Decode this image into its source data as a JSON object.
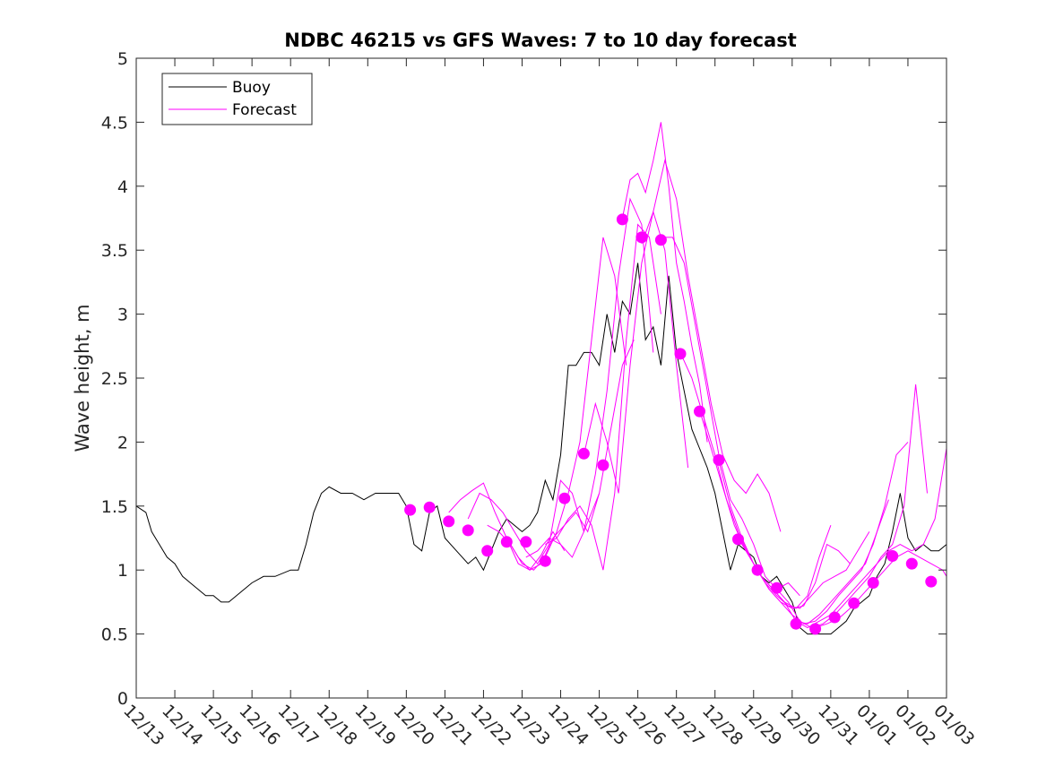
{
  "colors": {
    "buoy": "#000000",
    "forecast": "#ff00ff",
    "axes": "#262626",
    "background": "#ffffff"
  },
  "chart_data": {
    "type": "line",
    "title": "NDBC 46215 vs GFS Waves: 7 to 10 day forecast",
    "xlabel": "",
    "ylabel": "Wave height, m",
    "xlim": [
      0,
      21
    ],
    "ylim": [
      0,
      5
    ],
    "grid": false,
    "legend_position": "top-left",
    "x_unit": "days since 12/13",
    "xticks": [
      0,
      1,
      2,
      3,
      4,
      5,
      6,
      7,
      8,
      9,
      10,
      11,
      12,
      13,
      14,
      15,
      16,
      17,
      18,
      19,
      20,
      21
    ],
    "xtick_labels": [
      "12/13",
      "12/14",
      "12/15",
      "12/16",
      "12/17",
      "12/18",
      "12/19",
      "12/20",
      "12/21",
      "12/22",
      "12/23",
      "12/24",
      "12/25",
      "12/26",
      "12/27",
      "12/28",
      "12/29",
      "12/30",
      "12/31",
      "01/01",
      "01/02",
      "01/03"
    ],
    "yticks": [
      0,
      0.5,
      1,
      1.5,
      2,
      2.5,
      3,
      3.5,
      4,
      4.5,
      5
    ],
    "ytick_labels": [
      "0",
      "0.5",
      "1",
      "1.5",
      "2",
      "2.5",
      "3",
      "3.5",
      "4",
      "4.5",
      "5"
    ],
    "legend": [
      {
        "label": "Buoy",
        "series": "buoy"
      },
      {
        "label": "Forecast",
        "series": "forecast"
      }
    ],
    "buoy": {
      "name": "Buoy",
      "x": [
        0,
        0.25,
        0.4,
        0.6,
        0.8,
        1.0,
        1.2,
        1.4,
        1.6,
        1.8,
        2.0,
        2.2,
        2.4,
        2.6,
        2.8,
        3.0,
        3.3,
        3.6,
        4.0,
        4.2,
        4.4,
        4.6,
        4.8,
        5.0,
        5.3,
        5.6,
        5.9,
        6.2,
        6.5,
        6.8,
        7.0,
        7.2,
        7.4,
        7.6,
        7.8,
        8.0,
        8.3,
        8.6,
        8.8,
        9.0,
        9.2,
        9.4,
        9.6,
        9.8,
        10.0,
        10.2,
        10.4,
        10.6,
        10.8,
        11.0,
        11.2,
        11.4,
        11.6,
        11.8,
        12.0,
        12.2,
        12.4,
        12.6,
        12.8,
        13.0,
        13.2,
        13.4,
        13.6,
        13.8,
        14.0,
        14.2,
        14.4,
        14.6,
        14.8,
        15.0,
        15.2,
        15.4,
        15.6,
        15.8,
        16.0,
        16.2,
        16.4,
        16.6,
        16.8,
        17.0,
        17.2,
        17.4,
        17.6,
        17.8,
        18.0,
        18.2,
        18.4,
        18.6,
        18.8,
        19.0,
        19.2,
        19.4,
        19.6,
        19.8,
        20.0,
        20.2,
        20.4,
        20.6,
        20.8,
        21.0
      ],
      "values": [
        1.5,
        1.45,
        1.3,
        1.2,
        1.1,
        1.05,
        0.95,
        0.9,
        0.85,
        0.8,
        0.8,
        0.75,
        0.75,
        0.8,
        0.85,
        0.9,
        0.95,
        0.95,
        1.0,
        1.0,
        1.2,
        1.45,
        1.6,
        1.65,
        1.6,
        1.6,
        1.55,
        1.6,
        1.6,
        1.6,
        1.5,
        1.2,
        1.15,
        1.45,
        1.5,
        1.25,
        1.15,
        1.05,
        1.1,
        1.0,
        1.15,
        1.3,
        1.4,
        1.35,
        1.3,
        1.35,
        1.45,
        1.7,
        1.55,
        1.9,
        2.6,
        2.6,
        2.7,
        2.7,
        2.6,
        3.0,
        2.7,
        3.1,
        3.0,
        3.4,
        2.8,
        2.9,
        2.6,
        3.3,
        2.7,
        2.4,
        2.1,
        1.95,
        1.8,
        1.6,
        1.3,
        1.0,
        1.2,
        1.15,
        1.1,
        0.95,
        0.9,
        0.95,
        0.85,
        0.75,
        0.55,
        0.5,
        0.5,
        0.5,
        0.5,
        0.55,
        0.6,
        0.7,
        0.75,
        0.8,
        0.95,
        1.05,
        1.3,
        1.6,
        1.25,
        1.15,
        1.2,
        1.15,
        1.15,
        1.2
      ]
    },
    "forecast": {
      "name": "Forecast",
      "runs": [
        {
          "x": [
            8.1,
            8.4,
            8.7,
            9.0,
            9.3,
            9.6,
            9.9,
            10.2,
            10.5,
            10.8,
            11.1
          ],
          "values": [
            1.45,
            1.55,
            1.62,
            1.68,
            1.45,
            1.25,
            1.05,
            1.0,
            1.12,
            1.3,
            1.15
          ]
        },
        {
          "x": [
            8.6,
            8.9,
            9.2,
            9.5,
            9.8,
            10.1,
            10.4,
            10.7,
            11.0,
            11.3,
            11.6,
            12.0
          ],
          "values": [
            1.4,
            1.6,
            1.55,
            1.45,
            1.3,
            1.15,
            1.05,
            1.2,
            1.7,
            1.6,
            1.3,
            1.6
          ]
        },
        {
          "x": [
            9.1,
            9.4,
            9.7,
            10.0,
            10.3,
            10.6,
            10.9,
            11.2,
            11.5,
            11.8,
            12.1,
            12.4,
            12.7
          ],
          "values": [
            1.35,
            1.3,
            1.2,
            1.05,
            1.0,
            1.1,
            1.3,
            1.6,
            2.0,
            2.8,
            3.6,
            3.3,
            2.6
          ]
        },
        {
          "x": [
            9.6,
            9.9,
            10.2,
            10.5,
            10.8,
            11.1,
            11.4,
            11.7,
            12.0,
            12.3,
            12.6,
            12.9
          ],
          "values": [
            1.25,
            1.1,
            1.0,
            1.05,
            1.25,
            1.35,
            1.45,
            1.3,
            1.6,
            2.1,
            2.6,
            2.8
          ]
        },
        {
          "x": [
            10.1,
            10.4,
            10.7,
            11.0,
            11.3,
            11.6,
            11.9,
            12.2,
            12.5,
            12.8,
            13.1,
            13.4
          ],
          "values": [
            1.1,
            1.15,
            1.25,
            1.2,
            1.1,
            1.3,
            1.75,
            2.4,
            3.3,
            3.9,
            3.7,
            2.7
          ]
        },
        {
          "x": [
            10.6,
            10.9,
            11.2,
            11.5,
            11.8,
            12.1,
            12.4,
            12.7,
            13.0,
            13.3,
            13.6
          ],
          "values": [
            1.2,
            1.25,
            1.4,
            1.5,
            1.35,
            1.0,
            1.6,
            2.8,
            3.7,
            3.6,
            3.0
          ]
        },
        {
          "x": [
            11.6,
            11.9,
            12.2,
            12.5,
            12.8,
            13.1,
            13.4,
            13.7,
            14.0,
            14.3
          ],
          "values": [
            1.9,
            2.3,
            2.0,
            1.6,
            2.6,
            3.4,
            3.8,
            3.5,
            2.6,
            1.8
          ]
        },
        {
          "x": [
            12.6,
            12.8,
            13.0,
            13.2,
            13.4,
            13.6,
            13.8,
            14.0,
            14.2,
            14.4,
            14.6,
            14.8
          ],
          "values": [
            3.75,
            4.05,
            4.1,
            3.95,
            4.2,
            4.5,
            4.0,
            3.4,
            3.1,
            2.75,
            2.45,
            2.0
          ]
        },
        {
          "x": [
            13.1,
            13.4,
            13.7,
            14.0,
            14.3,
            14.6,
            14.9,
            15.2,
            15.5,
            15.8,
            16.1,
            16.4,
            16.7
          ],
          "values": [
            3.55,
            3.8,
            4.2,
            3.9,
            3.3,
            2.8,
            2.3,
            1.9,
            1.7,
            1.6,
            1.75,
            1.6,
            1.3
          ]
        },
        {
          "x": [
            13.6,
            13.9,
            14.2,
            14.5,
            14.8,
            15.1,
            15.4,
            15.7,
            16.0,
            16.3,
            16.6,
            16.9,
            17.2
          ],
          "values": [
            3.6,
            3.6,
            3.4,
            2.9,
            2.4,
            1.9,
            1.55,
            1.4,
            1.2,
            0.95,
            0.85,
            0.9,
            0.8
          ]
        },
        {
          "x": [
            14.1,
            14.4,
            14.7,
            15.0,
            15.3,
            15.6,
            15.9,
            16.2,
            16.5,
            16.8,
            17.1,
            17.4,
            17.7,
            18.0
          ],
          "values": [
            2.7,
            2.5,
            2.2,
            1.9,
            1.55,
            1.3,
            1.1,
            0.95,
            0.85,
            0.75,
            0.7,
            0.8,
            1.1,
            1.35
          ]
        },
        {
          "x": [
            14.6,
            14.9,
            15.2,
            15.5,
            15.8,
            16.1,
            16.4,
            16.7,
            17.0,
            17.3,
            17.6,
            17.9,
            18.2,
            18.5
          ],
          "values": [
            2.25,
            1.95,
            1.65,
            1.35,
            1.15,
            1.0,
            0.85,
            0.75,
            0.7,
            0.72,
            0.9,
            1.2,
            1.15,
            1.05
          ]
        },
        {
          "x": [
            15.1,
            15.4,
            15.7,
            16.0,
            16.3,
            16.6,
            16.9,
            17.2,
            17.5,
            17.8,
            18.1,
            18.4,
            18.7,
            19.0
          ],
          "values": [
            1.85,
            1.5,
            1.25,
            1.05,
            0.9,
            0.8,
            0.72,
            0.7,
            0.8,
            0.9,
            0.95,
            1.0,
            1.15,
            1.3
          ]
        },
        {
          "x": [
            15.6,
            15.9,
            16.2,
            16.5,
            16.8,
            17.1,
            17.4,
            17.7,
            18.0,
            18.3,
            18.6,
            18.9,
            19.2,
            19.5
          ],
          "values": [
            1.25,
            1.1,
            0.95,
            0.85,
            0.75,
            0.6,
            0.58,
            0.65,
            0.75,
            0.85,
            0.95,
            1.05,
            1.3,
            1.55
          ]
        },
        {
          "x": [
            16.1,
            16.4,
            16.7,
            17.0,
            17.3,
            17.6,
            17.9,
            18.2,
            18.5,
            18.8,
            19.1,
            19.4,
            19.7,
            20.0
          ],
          "values": [
            1.0,
            0.85,
            0.75,
            0.65,
            0.58,
            0.6,
            0.68,
            0.8,
            0.9,
            1.0,
            1.2,
            1.5,
            1.9,
            2.0
          ]
        },
        {
          "x": [
            16.6,
            16.9,
            17.2,
            17.5,
            17.8,
            18.1,
            18.4,
            18.7,
            19.0,
            19.3,
            19.6,
            19.9,
            20.2,
            20.5
          ],
          "values": [
            0.85,
            0.75,
            0.6,
            0.55,
            0.58,
            0.65,
            0.75,
            0.85,
            0.95,
            1.1,
            1.2,
            1.5,
            2.45,
            1.6
          ]
        },
        {
          "x": [
            17.1,
            17.4,
            17.7,
            18.0,
            18.3,
            18.6,
            18.9,
            19.2,
            19.5,
            19.8,
            20.1,
            20.4,
            20.7,
            21.0
          ],
          "values": [
            0.6,
            0.55,
            0.6,
            0.65,
            0.75,
            0.85,
            0.95,
            1.05,
            1.15,
            1.2,
            1.15,
            1.2,
            1.4,
            1.95
          ]
        },
        {
          "x": [
            17.6,
            17.9,
            18.2,
            18.5,
            18.8,
            19.1,
            19.4,
            19.7,
            20.0,
            20.3,
            20.6,
            20.9,
            21.0
          ],
          "values": [
            0.55,
            0.58,
            0.62,
            0.7,
            0.8,
            0.9,
            1.0,
            1.1,
            1.15,
            1.1,
            1.05,
            1.0,
            0.95
          ]
        }
      ],
      "markers": {
        "x": [
          7.1,
          7.6,
          8.1,
          8.6,
          9.1,
          9.6,
          10.1,
          10.6,
          11.1,
          11.6,
          12.1,
          12.6,
          13.1,
          13.6,
          14.1,
          14.6,
          15.1,
          15.6,
          16.1,
          16.6,
          17.1,
          17.6,
          18.1,
          18.6,
          19.1,
          19.6,
          20.1,
          20.6
        ],
        "values": [
          1.47,
          1.49,
          1.38,
          1.31,
          1.15,
          1.22,
          1.22,
          1.07,
          1.56,
          1.91,
          1.82,
          3.74,
          3.6,
          3.58,
          2.69,
          2.24,
          1.86,
          1.24,
          1.0,
          0.86,
          0.58,
          0.54,
          0.63,
          0.74,
          0.9,
          1.11,
          1.05,
          0.91
        ]
      }
    }
  }
}
